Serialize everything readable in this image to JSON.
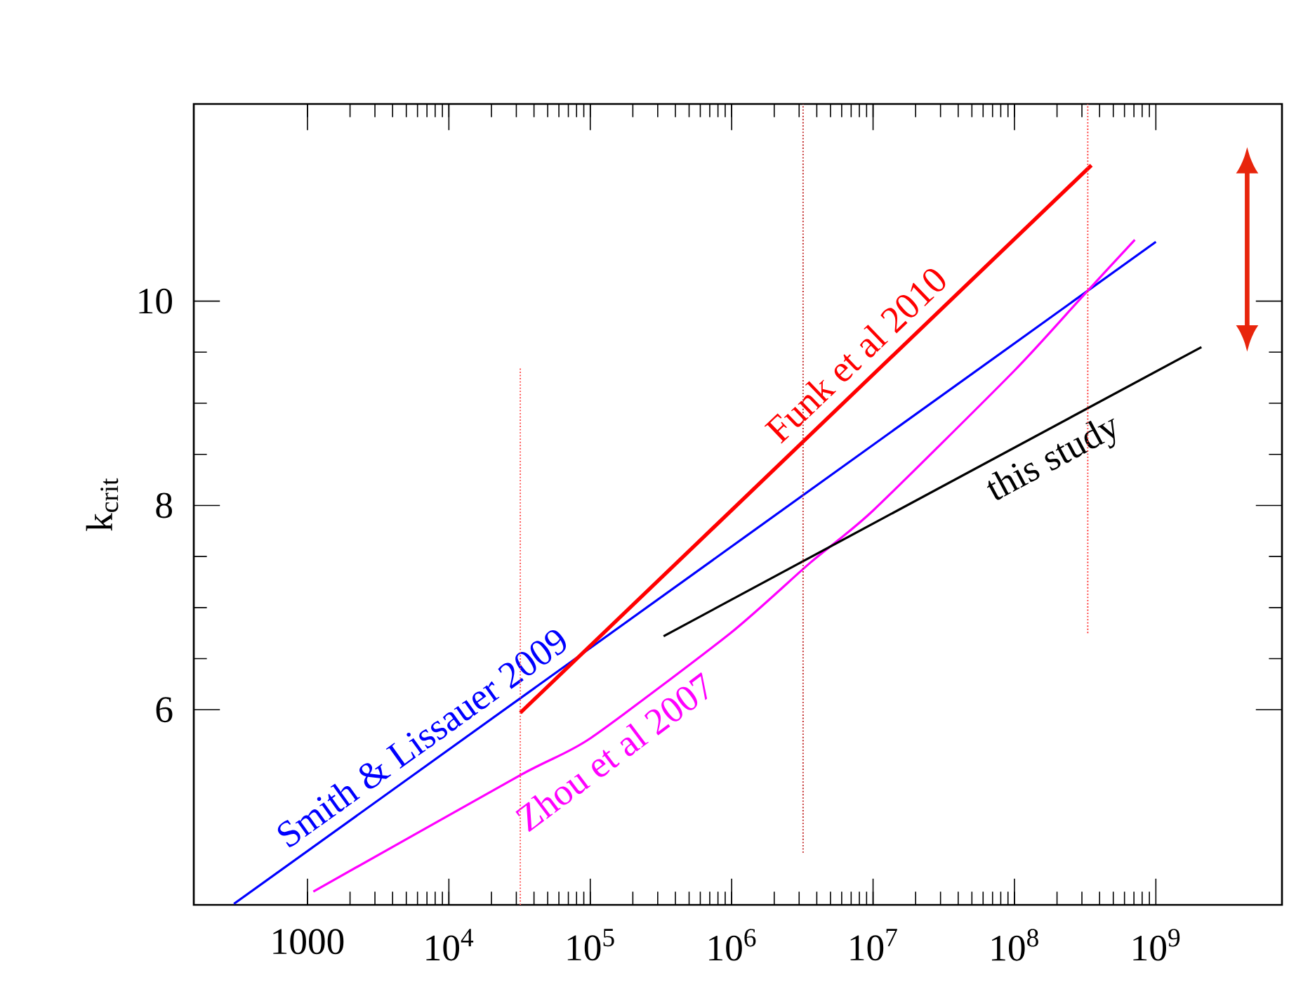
{
  "chart_data": {
    "type": "line",
    "ylabel": "k$_{crit}$",
    "log": "x",
    "grid": false,
    "line_style": "solid",
    "xlim": [
      157,
      7800000000.0
    ],
    "ylim": [
      4.09,
      11.93
    ],
    "xticks": [
      1000,
      {
        "value": 10000,
        "label": "10$^{4}$"
      },
      {
        "value": 100000,
        "label": "10$^{5}$"
      },
      {
        "value": 1000000,
        "label": "10$^{6}$"
      },
      {
        "value": 10000000,
        "label": "10$^{7}$"
      },
      {
        "value": 100000000,
        "label": "10$^{8}$"
      },
      {
        "value": 1000000000,
        "label": "10$^{9}$"
      }
    ],
    "yticks": [
      6,
      8,
      10
    ],
    "series": [
      {
        "name": "Smith & Lissauer 2009",
        "color": "#0000ff",
        "x": [
          302,
          1000000000
        ],
        "values": [
          4.1,
          10.58
        ]
      },
      {
        "name": "Funk et al 2010",
        "color": "#ff0000",
        "x": [
          32000,
          350000000
        ],
        "values": [
          5.97,
          11.33
        ]
      },
      {
        "name": "Zhou et al 2007",
        "color": "#ff00ff",
        "x": [
          1100,
          32000,
          100000,
          980000,
          3600000,
          10000000,
          100000000,
          300000000,
          710000000
        ],
        "values": [
          4.22,
          5.36,
          5.72,
          6.75,
          7.44,
          7.95,
          9.32,
          10.04,
          10.6
        ]
      },
      {
        "name": "this study",
        "color": "#000000",
        "x": [
          330000,
          2100000000
        ],
        "values": [
          6.72,
          9.55
        ]
      },
      {
        "color": "#ff5050",
        "line_style": "dotted",
        "x": [
          32000,
          32000
        ],
        "values": [
          4.09,
          9.34
        ]
      },
      {
        "color": "#c02020",
        "line_style": "dotted",
        "x": [
          3200000,
          3200000
        ],
        "values": [
          4.6,
          11.93
        ]
      },
      {
        "color": "#ff3030",
        "line_style": "dotted",
        "x": [
          330000000,
          330000000
        ],
        "values": [
          6.75,
          11.93
        ]
      }
    ]
  }
}
